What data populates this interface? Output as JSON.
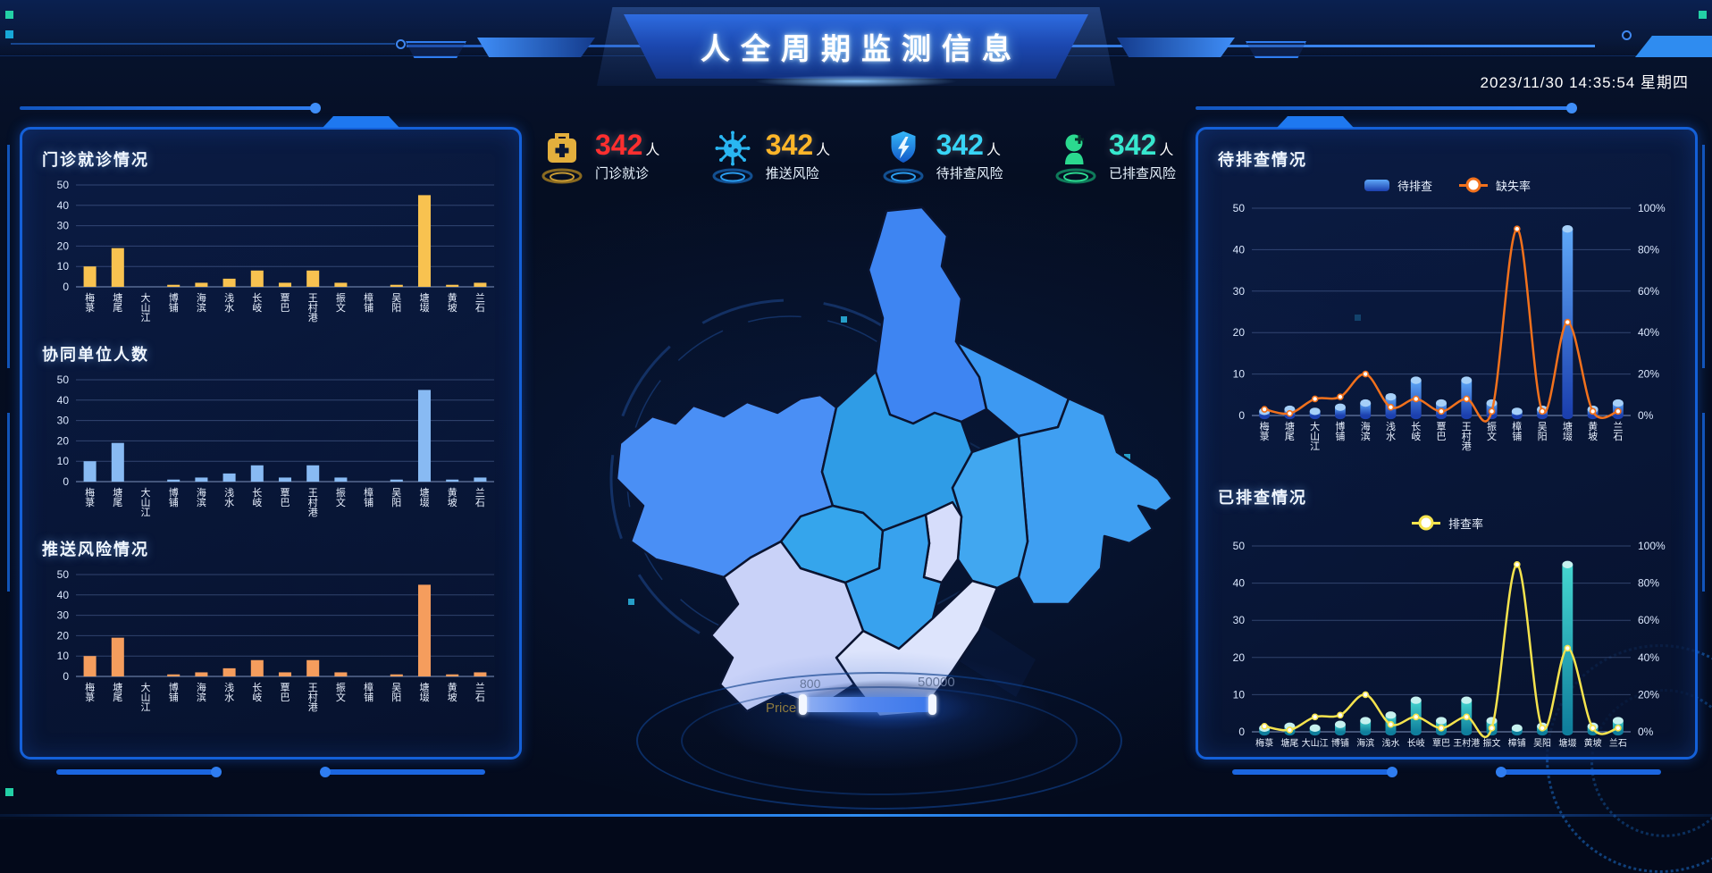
{
  "colors": {
    "accent": "#1e6cf0",
    "panel_border": "#1460d8",
    "background": "#040b1d",
    "title_plate": "#2e6ce0"
  },
  "header": {
    "title": "人全周期监测信息",
    "datetime": "2023/11/30 14:35:54 星期四"
  },
  "stats": [
    {
      "value": "342",
      "unit": "人",
      "label": "门诊就诊",
      "value_color": "#ff2f2f",
      "icon": "medkit-icon",
      "icon_color": "#e3af3d"
    },
    {
      "value": "342",
      "unit": "人",
      "label": "推送风险",
      "value_color": "#ffb629",
      "icon": "virus-icon",
      "icon_color": "#29b6f2"
    },
    {
      "value": "342",
      "unit": "人",
      "label": "待排查风险",
      "value_color": "#38d5f6",
      "icon": "shield-lightning-icon",
      "icon_color": "#2b9cf2"
    },
    {
      "value": "342",
      "unit": "人",
      "label": "已排查风险",
      "value_color": "#37e8cf",
      "icon": "head-plus-icon",
      "icon_color": "#2bd98f"
    }
  ],
  "map": {
    "slider": {
      "label": "Price",
      "min": "800",
      "max": "50000"
    }
  },
  "towns": [
    "梅菉",
    "塘尾",
    "大山江",
    "博铺",
    "海滨",
    "浅水",
    "长岐",
    "覃巴",
    "王村港",
    "振文",
    "樟铺",
    "吴阳",
    "塘㙍",
    "黄坡",
    "兰石"
  ],
  "chart_data": [
    {
      "id": "outpatient",
      "type": "bar",
      "title": "门诊就诊情况",
      "categories": [
        "梅菉",
        "塘尾",
        "大山江",
        "博铺",
        "海滨",
        "浅水",
        "长岐",
        "覃巴",
        "王村港",
        "振文",
        "樟铺",
        "吴阳",
        "塘㙍",
        "黄坡",
        "兰石"
      ],
      "values": [
        10,
        19,
        0,
        1,
        2,
        4,
        8,
        2,
        8,
        2,
        0,
        1,
        45,
        1,
        2
      ],
      "bar_color": "#f8c250",
      "ylim": [
        0,
        50
      ],
      "ystep": 10
    },
    {
      "id": "cooperative",
      "type": "bar",
      "title": "协同单位人数",
      "categories": [
        "梅菉",
        "塘尾",
        "大山江",
        "博铺",
        "海滨",
        "浅水",
        "长岐",
        "覃巴",
        "王村港",
        "振文",
        "樟铺",
        "吴阳",
        "塘㙍",
        "黄坡",
        "兰石"
      ],
      "values": [
        10,
        19,
        0,
        1,
        2,
        4,
        8,
        2,
        8,
        2,
        0,
        1,
        45,
        1,
        2
      ],
      "bar_color": "#88baf3",
      "ylim": [
        0,
        50
      ],
      "ystep": 10
    },
    {
      "id": "push_risk",
      "type": "bar",
      "title": "推送风险情况",
      "categories": [
        "梅菉",
        "塘尾",
        "大山江",
        "博铺",
        "海滨",
        "浅水",
        "长岐",
        "覃巴",
        "王村港",
        "振文",
        "樟铺",
        "吴阳",
        "塘㙍",
        "黄坡",
        "兰石"
      ],
      "values": [
        10,
        19,
        0,
        1,
        2,
        4,
        8,
        2,
        8,
        2,
        0,
        1,
        45,
        1,
        2
      ],
      "bar_color": "#f59d5d",
      "ylim": [
        0,
        50
      ],
      "ystep": 10
    },
    {
      "id": "pending",
      "type": "bar+line",
      "title": "待排查情况",
      "categories": [
        "梅菉",
        "塘尾",
        "大山江",
        "博铺",
        "海滨",
        "浅水",
        "长岐",
        "覃巴",
        "王村港",
        "振文",
        "樟铺",
        "吴阳",
        "塘㙍",
        "黄坡",
        "兰石"
      ],
      "ylim": [
        0,
        50
      ],
      "ystep": 10,
      "percent_ylim": [
        0,
        100
      ],
      "percent_ystep": 20,
      "series": [
        {
          "name": "待排查",
          "type": "bar",
          "values": [
            1,
            1.5,
            1,
            2,
            3,
            4.5,
            8.5,
            3,
            8.5,
            3,
            1,
            1.5,
            45,
            1.5,
            3
          ],
          "color_top": "#5fa8f8",
          "color_bottom": "#1b3fae",
          "cap_color": "#a6d0f8",
          "in_legend": true
        },
        {
          "name": "缺失率",
          "type": "line",
          "axis": "percent",
          "values": [
            3,
            1,
            8,
            9,
            20,
            4,
            8,
            2,
            8,
            2,
            90,
            2,
            45,
            2,
            2
          ],
          "color": "#f2711c",
          "in_legend": true
        }
      ]
    },
    {
      "id": "checked",
      "type": "bar+line",
      "title": "已排查情况",
      "categories": [
        "梅菉",
        "塘尾",
        "大山江",
        "博铺",
        "海滨",
        "浅水",
        "长岐",
        "覃巴",
        "王村港",
        "振文",
        "樟铺",
        "吴阳",
        "塘㙍",
        "黄坡",
        "兰石"
      ],
      "ylim": [
        0,
        50
      ],
      "ystep": 10,
      "percent_ylim": [
        0,
        100
      ],
      "percent_ystep": 20,
      "series": [
        {
          "type": "bar",
          "values": [
            1,
            1.5,
            1,
            2,
            3,
            4.5,
            8.5,
            3,
            8.5,
            3,
            1,
            1.5,
            45,
            1.5,
            3
          ],
          "color_top": "#45d6d0",
          "color_bottom": "#0f7e9c",
          "cap_color": "#c6f1ef",
          "in_legend": false
        },
        {
          "name": "排查率",
          "type": "line",
          "axis": "percent",
          "values": [
            3,
            1,
            8,
            9,
            20,
            4,
            8,
            2,
            8,
            2,
            90,
            2,
            45,
            2,
            2
          ],
          "color": "#f5e34d",
          "in_legend": true
        }
      ]
    }
  ]
}
